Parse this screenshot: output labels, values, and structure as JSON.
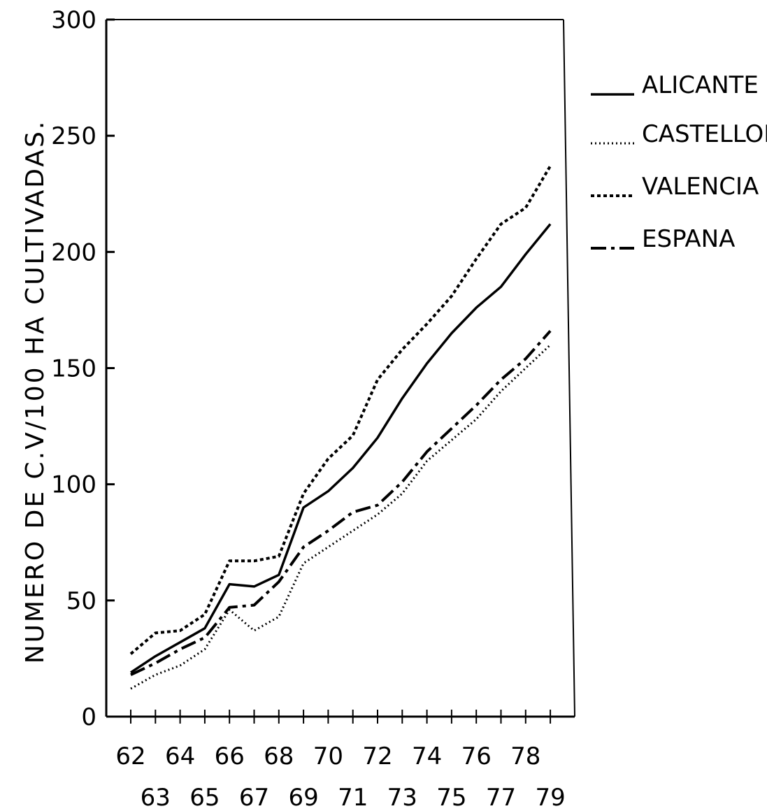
{
  "chart_data": {
    "type": "line",
    "title": "",
    "xlabel": "",
    "ylabel": "NUMERO DE C.V/100 HA CULTIVADAS.",
    "x": [
      "62",
      "63",
      "64",
      "65",
      "66",
      "67",
      "68",
      "69",
      "70",
      "71",
      "72",
      "73",
      "74",
      "75",
      "76",
      "77",
      "78",
      "79"
    ],
    "xlim": [
      "62",
      "79"
    ],
    "ylim": [
      0,
      300
    ],
    "yticks": [
      0,
      50,
      100,
      150,
      200,
      250,
      300
    ],
    "grid": false,
    "legend_position": "top-right, outside plot",
    "series": [
      {
        "name": "ALICANTE",
        "style": "solid",
        "values": [
          19,
          26,
          32,
          38,
          57,
          56,
          61,
          90,
          97,
          107,
          120,
          137,
          152,
          165,
          176,
          185,
          199,
          212
        ]
      },
      {
        "name": "CASTELLON",
        "style": "dotted",
        "values": [
          12,
          18,
          22,
          29,
          46,
          37,
          43,
          66,
          73,
          80,
          87,
          96,
          110,
          119,
          128,
          140,
          150,
          160
        ]
      },
      {
        "name": "VALENCIA",
        "style": "dashed",
        "values": [
          27,
          36,
          37,
          44,
          67,
          67,
          69,
          96,
          111,
          121,
          145,
          158,
          169,
          181,
          197,
          212,
          219,
          237
        ]
      },
      {
        "name": "ESPANA",
        "style": "dash-dot",
        "values": [
          18,
          23,
          29,
          34,
          47,
          48,
          58,
          73,
          80,
          88,
          91,
          101,
          114,
          124,
          134,
          145,
          154,
          166
        ]
      }
    ]
  },
  "legend": {
    "items": [
      {
        "label": "ALICANTE"
      },
      {
        "label": "CASTELLON"
      },
      {
        "label": "VALENCIA"
      },
      {
        "label": "ESPANA"
      }
    ]
  }
}
